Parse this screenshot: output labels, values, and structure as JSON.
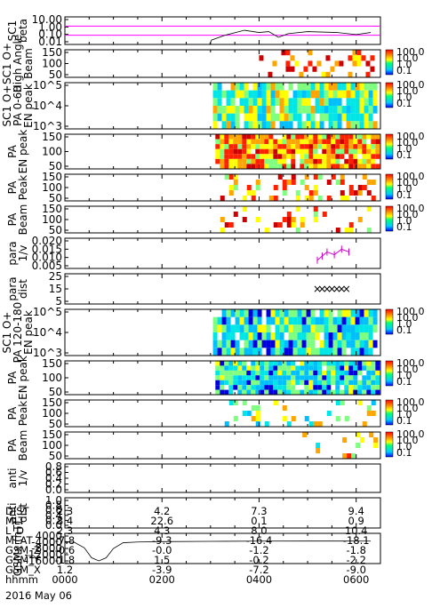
{
  "chart_data": {
    "type": "heatmap",
    "title": "",
    "date": "2016 May 06",
    "time_axis": {
      "range_hhmm": [
        "0000",
        "0630"
      ],
      "major_ticks": [
        "0000",
        "0200",
        "0400",
        "0600"
      ]
    },
    "colorbar": {
      "ticks": [
        "100.0",
        "10.0",
        "1.0",
        "0.1"
      ],
      "scale": "log"
    },
    "panels": [
      {
        "id": "beta",
        "ylabel": [
          "SC1",
          "beta"
        ],
        "yticks": [
          "10.00",
          "1.00",
          "0.10",
          "0.01"
        ],
        "scale": "log",
        "hlines_color": "#ff00ff",
        "hline_values": [
          1.0,
          0.1
        ],
        "line": [
          [
            2.98,
            0.01
          ],
          [
            3.02,
            0.03
          ],
          [
            3.3,
            0.1
          ],
          [
            3.7,
            0.35
          ],
          [
            4.0,
            0.2
          ],
          [
            4.2,
            0.25
          ],
          [
            4.4,
            0.06
          ],
          [
            4.6,
            0.15
          ],
          [
            5.0,
            0.25
          ],
          [
            5.6,
            0.2
          ],
          [
            6.0,
            0.12
          ],
          [
            6.3,
            0.2
          ]
        ]
      },
      {
        "id": "hi_beam",
        "ylabel": [
          "SC1 O+",
          "High Angle",
          "Beam"
        ],
        "yticks": [
          "150",
          "100",
          "50"
        ],
        "colorbar": true
      },
      {
        "id": "pa_en_0_60",
        "ylabel": [
          "SC1 O+",
          "PA 0-60",
          "EN peak"
        ],
        "yticks": [
          "10^5",
          "10^4",
          "10^3"
        ],
        "colorbar": true
      },
      {
        "id": "pa_en_peak",
        "ylabel": [
          "PA",
          "EN peak"
        ],
        "yticks": [
          "150",
          "100",
          "50"
        ],
        "colorbar": true
      },
      {
        "id": "pa_peak",
        "ylabel": [
          "PA",
          "Peak"
        ],
        "yticks": [
          "150",
          "100",
          "50"
        ],
        "colorbar": true
      },
      {
        "id": "pa_beam",
        "ylabel": [
          "PA",
          "Beam"
        ],
        "yticks": [
          "150",
          "100",
          "50"
        ],
        "colorbar": true
      },
      {
        "id": "para_1v",
        "ylabel": [
          "para",
          "1/v"
        ],
        "yticks": [
          "0.020",
          "0.015",
          "0.010",
          "0.005"
        ],
        "series_color": "#cc00cc",
        "points": [
          [
            5.2,
            0.006
          ],
          [
            5.3,
            0.009
          ],
          [
            5.4,
            0.012
          ],
          [
            5.55,
            0.01
          ],
          [
            5.7,
            0.014
          ],
          [
            5.85,
            0.012
          ]
        ]
      },
      {
        "id": "para_dist",
        "ylabel": [
          "para",
          "dist"
        ],
        "yticks": [
          "25",
          "15",
          "5"
        ],
        "cross_points": [
          [
            5.2,
            15
          ],
          [
            5.3,
            15
          ],
          [
            5.4,
            15
          ],
          [
            5.5,
            15
          ],
          [
            5.6,
            15
          ],
          [
            5.7,
            15
          ],
          [
            5.8,
            15
          ]
        ]
      },
      {
        "id": "pa_en_120_180",
        "ylabel": [
          "SC1 O+",
          "PA 120-180",
          "EN peak"
        ],
        "yticks": [
          "10^5",
          "10^4",
          "10^3"
        ],
        "colorbar": true
      },
      {
        "id": "pa_en_peak_2",
        "ylabel": [
          "PA",
          "EN peak"
        ],
        "yticks": [
          "150",
          "100",
          "50"
        ],
        "colorbar": true
      },
      {
        "id": "pa_peak_2",
        "ylabel": [
          "PA",
          "Peak"
        ],
        "yticks": [
          "150",
          "100",
          "50"
        ],
        "colorbar": true
      },
      {
        "id": "pa_beam_2",
        "ylabel": [
          "PA",
          "Beam"
        ],
        "yticks": [
          "150",
          "100",
          "50"
        ],
        "colorbar": true
      },
      {
        "id": "anti_1v",
        "ylabel": [
          "anti",
          "1/v"
        ],
        "yticks": [
          "0.8",
          "0.6",
          "0.4",
          "0.2",
          "0.0"
        ]
      },
      {
        "id": "anti_dist",
        "ylabel": [
          "anti",
          "dist"
        ],
        "yticks": [
          "1.0",
          "0.8",
          "0.6",
          "0.4",
          "0.2",
          "0.0"
        ]
      },
      {
        "id": "gsmx",
        "ylabel": [
          "GSMx (nT)"
        ],
        "yticks": [
          "4000",
          "-4000",
          "-8000",
          "-12000",
          "-16000"
        ],
        "line": [
          [
            0.0,
            -400
          ],
          [
            0.2,
            -1200
          ],
          [
            0.4,
            -5500
          ],
          [
            0.55,
            -13500
          ],
          [
            0.7,
            -16000
          ],
          [
            0.85,
            -13500
          ],
          [
            1.0,
            -6000
          ],
          [
            1.2,
            -1400
          ],
          [
            1.5,
            -800
          ],
          [
            2.0,
            -500
          ],
          [
            3.0,
            -300
          ],
          [
            4.0,
            -100
          ],
          [
            5.0,
            -50
          ],
          [
            6.3,
            -100
          ]
        ]
      }
    ],
    "ephemeris": {
      "rows": [
        {
          "label": "DIST",
          "values": [
            "2.3",
            "4.2",
            "7.3",
            "9.4"
          ]
        },
        {
          "label": "MLT",
          "values": [
            "8.4",
            "22.6",
            "0.1",
            "0.9"
          ]
        },
        {
          "label": "L_D",
          "values": [
            "2.3",
            "4.3",
            "8.0",
            "10.4"
          ]
        },
        {
          "label": "MLAT",
          "values": [
            "-7.8",
            "-9.3",
            "-16.4",
            "-18.1"
          ]
        },
        {
          "label": "GSM_Z",
          "values": [
            "-0.6",
            "-0.0",
            "-1.2",
            "-1.8"
          ]
        },
        {
          "label": "GSM_Y",
          "values": [
            "-1.8",
            "1.5",
            "-0.2",
            "-2.2"
          ]
        },
        {
          "label": "GSM_X",
          "values": [
            "1.2",
            "-3.9",
            "-7.2",
            "-9.0"
          ]
        },
        {
          "label": "hhmm",
          "values": [
            "0000",
            "0200",
            "0400",
            "0600"
          ]
        }
      ]
    }
  }
}
